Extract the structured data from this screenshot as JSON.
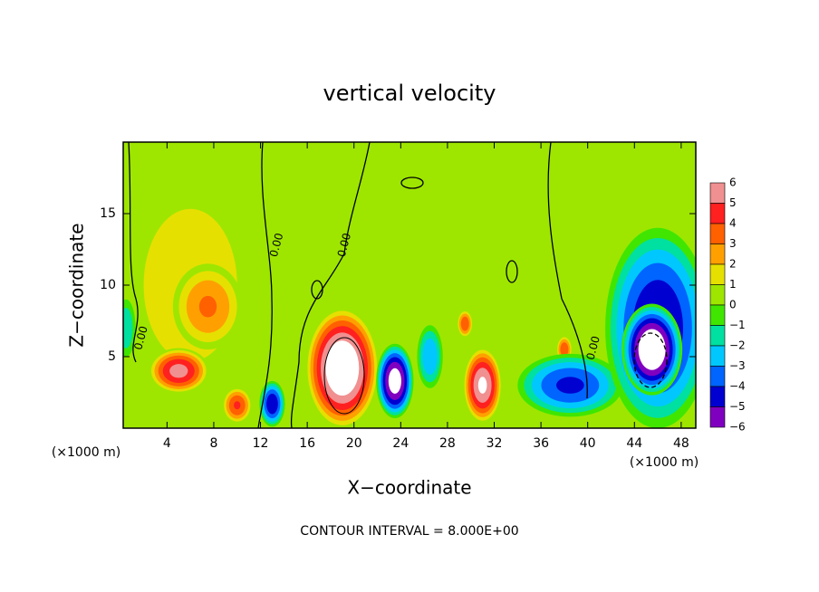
{
  "chart_data": {
    "type": "contour",
    "title": "vertical velocity",
    "xlabel": "X−coordinate",
    "ylabel": "Z−coordinate",
    "x_unit_label": "(×1000 m)",
    "x_unit_label_right": "(×1000 m)",
    "footer": "CONTOUR INTERVAL = 8.000E+00",
    "xlim": [
      0.25,
      49.25
    ],
    "ylim": [
      0,
      20
    ],
    "xticks": [
      4,
      8,
      12,
      16,
      20,
      24,
      28,
      32,
      36,
      40,
      44,
      48
    ],
    "yticks": [
      5,
      10,
      15
    ],
    "background_value": 0.5,
    "levels": [
      6,
      5,
      4,
      3,
      2,
      1,
      0,
      {
        "value": -1,
        "label": "−1"
      },
      {
        "value": -2,
        "label": "−2"
      },
      {
        "value": -3,
        "label": "−3"
      },
      {
        "value": -4,
        "label": "−4"
      },
      {
        "value": -5,
        "label": "−5"
      },
      {
        "value": -6,
        "label": "−6"
      }
    ],
    "colors": [
      "#f09090",
      "#ff2020",
      "#ff6000",
      "#ffa000",
      "#e6e000",
      "#9ee600",
      "#40e600",
      "#00e0a0",
      "#00c8ff",
      "#0064ff",
      "#0000d0",
      "#8000c0"
    ],
    "features": [
      {
        "x": 6,
        "z": 10,
        "rx": 6,
        "rz": 8,
        "value": 1.8
      },
      {
        "x": 7.5,
        "z": 8.5,
        "rx": 3,
        "rz": 3,
        "value": 3.2
      },
      {
        "x": 5,
        "z": 4,
        "rx": 2.6,
        "rz": 1.6,
        "value": 5.5
      },
      {
        "x": 10,
        "z": 1.6,
        "rx": 1.3,
        "rz": 1.3,
        "value": 4.2
      },
      {
        "x": 13,
        "z": 1.7,
        "rx": 1.1,
        "rz": 1.6,
        "value": -5
      },
      {
        "x": 19,
        "z": 4.2,
        "rx": 3.2,
        "rz": 4.3,
        "value": 7.5
      },
      {
        "x": 23.5,
        "z": 3.3,
        "rx": 1.6,
        "rz": 2.6,
        "value": -6.8
      },
      {
        "x": 26.5,
        "z": 5,
        "rx": 1.1,
        "rz": 2.2,
        "value": -3
      },
      {
        "x": 29.5,
        "z": 7.3,
        "rx": 0.7,
        "rz": 1,
        "value": 4
      },
      {
        "x": 31,
        "z": 3,
        "rx": 1.7,
        "rz": 2.7,
        "value": 6.3
      },
      {
        "x": 38,
        "z": 5.5,
        "rx": 0.7,
        "rz": 1,
        "value": 4
      },
      {
        "x": 38.5,
        "z": 3,
        "rx": 4.5,
        "rz": 2.2,
        "value": -4.3
      },
      {
        "x": 46,
        "z": 7,
        "rx": 4.5,
        "rz": 7,
        "value": -5.2
      },
      {
        "x": 45.5,
        "z": 5.5,
        "rx": 2.6,
        "rz": 3.2,
        "value": -7.5
      },
      {
        "x": 0.5,
        "z": 7,
        "rx": 0.8,
        "rz": 2,
        "value": -2
      }
    ],
    "contour_labels": [
      {
        "label": "0.00",
        "x": 1.8,
        "z": 6.3
      },
      {
        "label": "0.00",
        "x": 13.4,
        "z": 12.8
      },
      {
        "label": "0.00",
        "x": 19.2,
        "z": 12.8
      },
      {
        "label": "0.00",
        "x": 40.5,
        "z": 5.6
      }
    ]
  }
}
